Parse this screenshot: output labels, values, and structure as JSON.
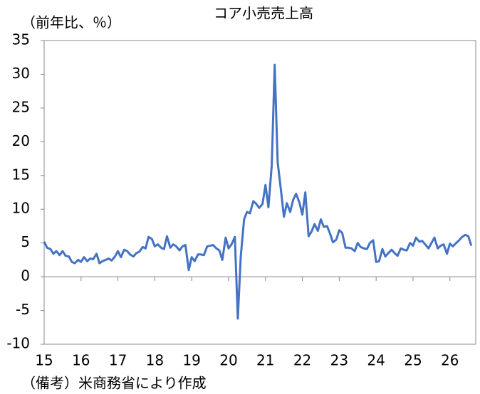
{
  "chart_data": {
    "type": "line",
    "title": "コア小売売上高",
    "y_label": "（前年比、％）",
    "note": "（備考）米商務省により作成",
    "color": "#4472c4",
    "x": [
      15,
      15.08,
      15.17,
      15.25,
      15.33,
      15.42,
      15.5,
      15.58,
      15.67,
      15.75,
      15.83,
      15.92,
      16,
      16.08,
      16.17,
      16.25,
      16.33,
      16.42,
      16.5,
      16.58,
      16.67,
      16.75,
      16.83,
      16.92,
      17,
      17.08,
      17.17,
      17.25,
      17.33,
      17.42,
      17.5,
      17.58,
      17.67,
      17.75,
      17.83,
      17.92,
      18,
      18.08,
      18.17,
      18.25,
      18.33,
      18.42,
      18.5,
      18.58,
      18.67,
      18.75,
      18.83,
      18.92,
      19,
      19.08,
      19.17,
      19.25,
      19.33,
      19.42,
      19.5,
      19.58,
      19.67,
      19.75,
      19.83,
      19.92,
      20,
      20.08,
      20.17,
      20.25,
      20.33,
      20.42,
      20.5,
      20.58,
      20.67,
      20.75,
      20.83,
      20.92,
      21,
      21.08,
      21.17,
      21.25,
      21.33,
      21.42,
      21.5,
      21.58,
      21.67,
      21.75,
      21.83,
      21.92,
      22,
      22.08,
      22.17,
      22.25,
      22.33,
      22.42,
      22.5,
      22.58,
      22.67,
      22.75,
      22.83,
      22.92,
      23,
      23.08,
      23.17,
      23.25,
      23.33,
      23.42,
      23.5,
      23.58,
      23.67,
      23.75,
      23.83,
      23.92,
      24,
      24.08,
      24.17,
      24.25,
      24.33,
      24.42,
      24.5,
      24.58,
      24.67,
      24.75,
      24.83,
      24.92,
      25,
      25.08,
      25.17,
      25.25,
      25.33,
      25.42,
      25.5,
      25.58,
      25.67,
      25.75,
      25.83,
      25.92,
      26,
      26.08,
      26.17,
      26.25,
      26.33,
      26.42,
      26.5,
      26.58
    ],
    "values": [
      5.2,
      4.3,
      4.1,
      3.4,
      3.8,
      3.2,
      3.8,
      3.1,
      3.0,
      2.2,
      2.0,
      2.5,
      2.2,
      2.9,
      2.3,
      2.7,
      2.6,
      3.4,
      2.0,
      2.3,
      2.5,
      2.7,
      2.4,
      3.0,
      3.8,
      2.9,
      4.0,
      3.8,
      3.3,
      3.0,
      3.5,
      3.7,
      4.4,
      4.2,
      5.9,
      5.6,
      4.5,
      4.8,
      4.3,
      4.1,
      6.0,
      4.3,
      4.8,
      4.5,
      3.9,
      4.5,
      4.7,
      1.0,
      2.9,
      2.3,
      3.3,
      3.3,
      3.2,
      4.5,
      4.6,
      4.7,
      4.2,
      3.9,
      2.5,
      5.8,
      4.2,
      4.8,
      5.9,
      -6.2,
      3.0,
      8.5,
      9.6,
      9.4,
      11.2,
      10.8,
      10.2,
      10.8,
      13.6,
      10.3,
      16.5,
      31.4,
      17.0,
      12.8,
      8.9,
      10.9,
      9.6,
      11.4,
      12.3,
      11.0,
      9.2,
      12.5,
      6.0,
      6.7,
      7.8,
      6.8,
      8.5,
      7.4,
      7.5,
      6.4,
      5.1,
      5.5,
      6.9,
      6.5,
      4.3,
      4.3,
      4.2,
      3.8,
      5.0,
      4.4,
      4.2,
      4.1,
      5.0,
      5.4,
      2.2,
      2.3,
      4.1,
      3.0,
      3.5,
      4.0,
      3.5,
      3.1,
      4.2,
      4.0,
      3.9,
      5.0,
      4.6,
      5.8,
      5.2,
      5.3,
      4.8,
      4.2,
      5.0,
      5.8,
      4.2,
      4.6,
      4.8,
      3.4,
      4.9,
      4.5,
      5.0,
      5.4,
      5.9,
      6.2,
      6.0,
      4.6
    ],
    "xlim": [
      15,
      26.7
    ],
    "xticks": [
      15,
      16,
      17,
      18,
      19,
      20,
      21,
      22,
      23,
      24,
      25,
      26
    ],
    "ylim": [
      -10,
      35
    ],
    "yticks": [
      -10,
      -5,
      0,
      5,
      10,
      15,
      20,
      25,
      30,
      35
    ]
  }
}
